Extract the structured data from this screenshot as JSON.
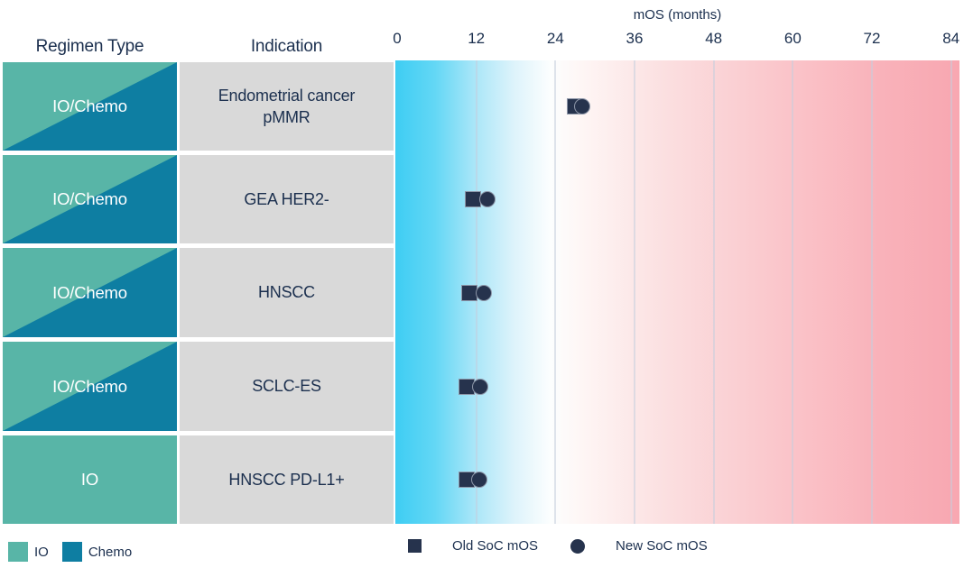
{
  "table": {
    "regimen_column_header": "Regimen Type",
    "indication_column_header": "Indication"
  },
  "axis": {
    "title": "mOS (months)",
    "ticks": [
      0,
      12,
      24,
      36,
      48,
      60,
      72,
      84
    ]
  },
  "chart_data": {
    "type": "scatter",
    "title": "mOS (months)",
    "xlabel": "mOS (months)",
    "x_ticks": [
      0,
      12,
      24,
      36,
      48,
      60,
      72,
      84
    ],
    "xlim": [
      0,
      84
    ],
    "grid": "vertical lines every 12 months",
    "background": "blue-to-pink horizontal gradient (low mOS = blue, high mOS = pink)",
    "series": [
      {
        "name": "Old SoC mOS",
        "marker": "square",
        "color": "#26334d"
      },
      {
        "name": "New SoC mOS",
        "marker": "circle",
        "color": "#26334d"
      }
    ],
    "rows": [
      {
        "regimen": "IO/Chemo",
        "regimen_parts": [
          "IO",
          "Chemo"
        ],
        "indication": "Endometrial cancer\npMMR",
        "old_soc_mos": 27.0,
        "new_soc_mos": 28.0
      },
      {
        "regimen": "IO/Chemo",
        "regimen_parts": [
          "IO",
          "Chemo"
        ],
        "indication": "GEA HER2-",
        "old_soc_mos": 11.5,
        "new_soc_mos": 13.7
      },
      {
        "regimen": "IO/Chemo",
        "regimen_parts": [
          "IO",
          "Chemo"
        ],
        "indication": "HNSCC",
        "old_soc_mos": 10.9,
        "new_soc_mos": 13.2
      },
      {
        "regimen": "IO/Chemo",
        "regimen_parts": [
          "IO",
          "Chemo"
        ],
        "indication": "SCLC-ES",
        "old_soc_mos": 10.5,
        "new_soc_mos": 12.6
      },
      {
        "regimen": "IO",
        "regimen_parts": [
          "IO"
        ],
        "indication": "HNSCC PD-L1+",
        "old_soc_mos": 10.6,
        "new_soc_mos": 12.5
      }
    ]
  },
  "legend": {
    "regimen": [
      {
        "label": "IO",
        "color": "#58b5a7"
      },
      {
        "label": "Chemo",
        "color": "#0e7ea2"
      }
    ],
    "markers": [
      {
        "label": "Old SoC mOS",
        "shape": "square"
      },
      {
        "label": "New SoC mOS",
        "shape": "circle"
      }
    ]
  },
  "colors": {
    "io": "#58b5a7",
    "chemo": "#0e7ea2",
    "marker": "#26334d",
    "indication_cell": "#d9d9d9",
    "text_navy": "#1b2f4e",
    "band_left": "#3ecdf3",
    "band_right": "#f8a7b1"
  }
}
